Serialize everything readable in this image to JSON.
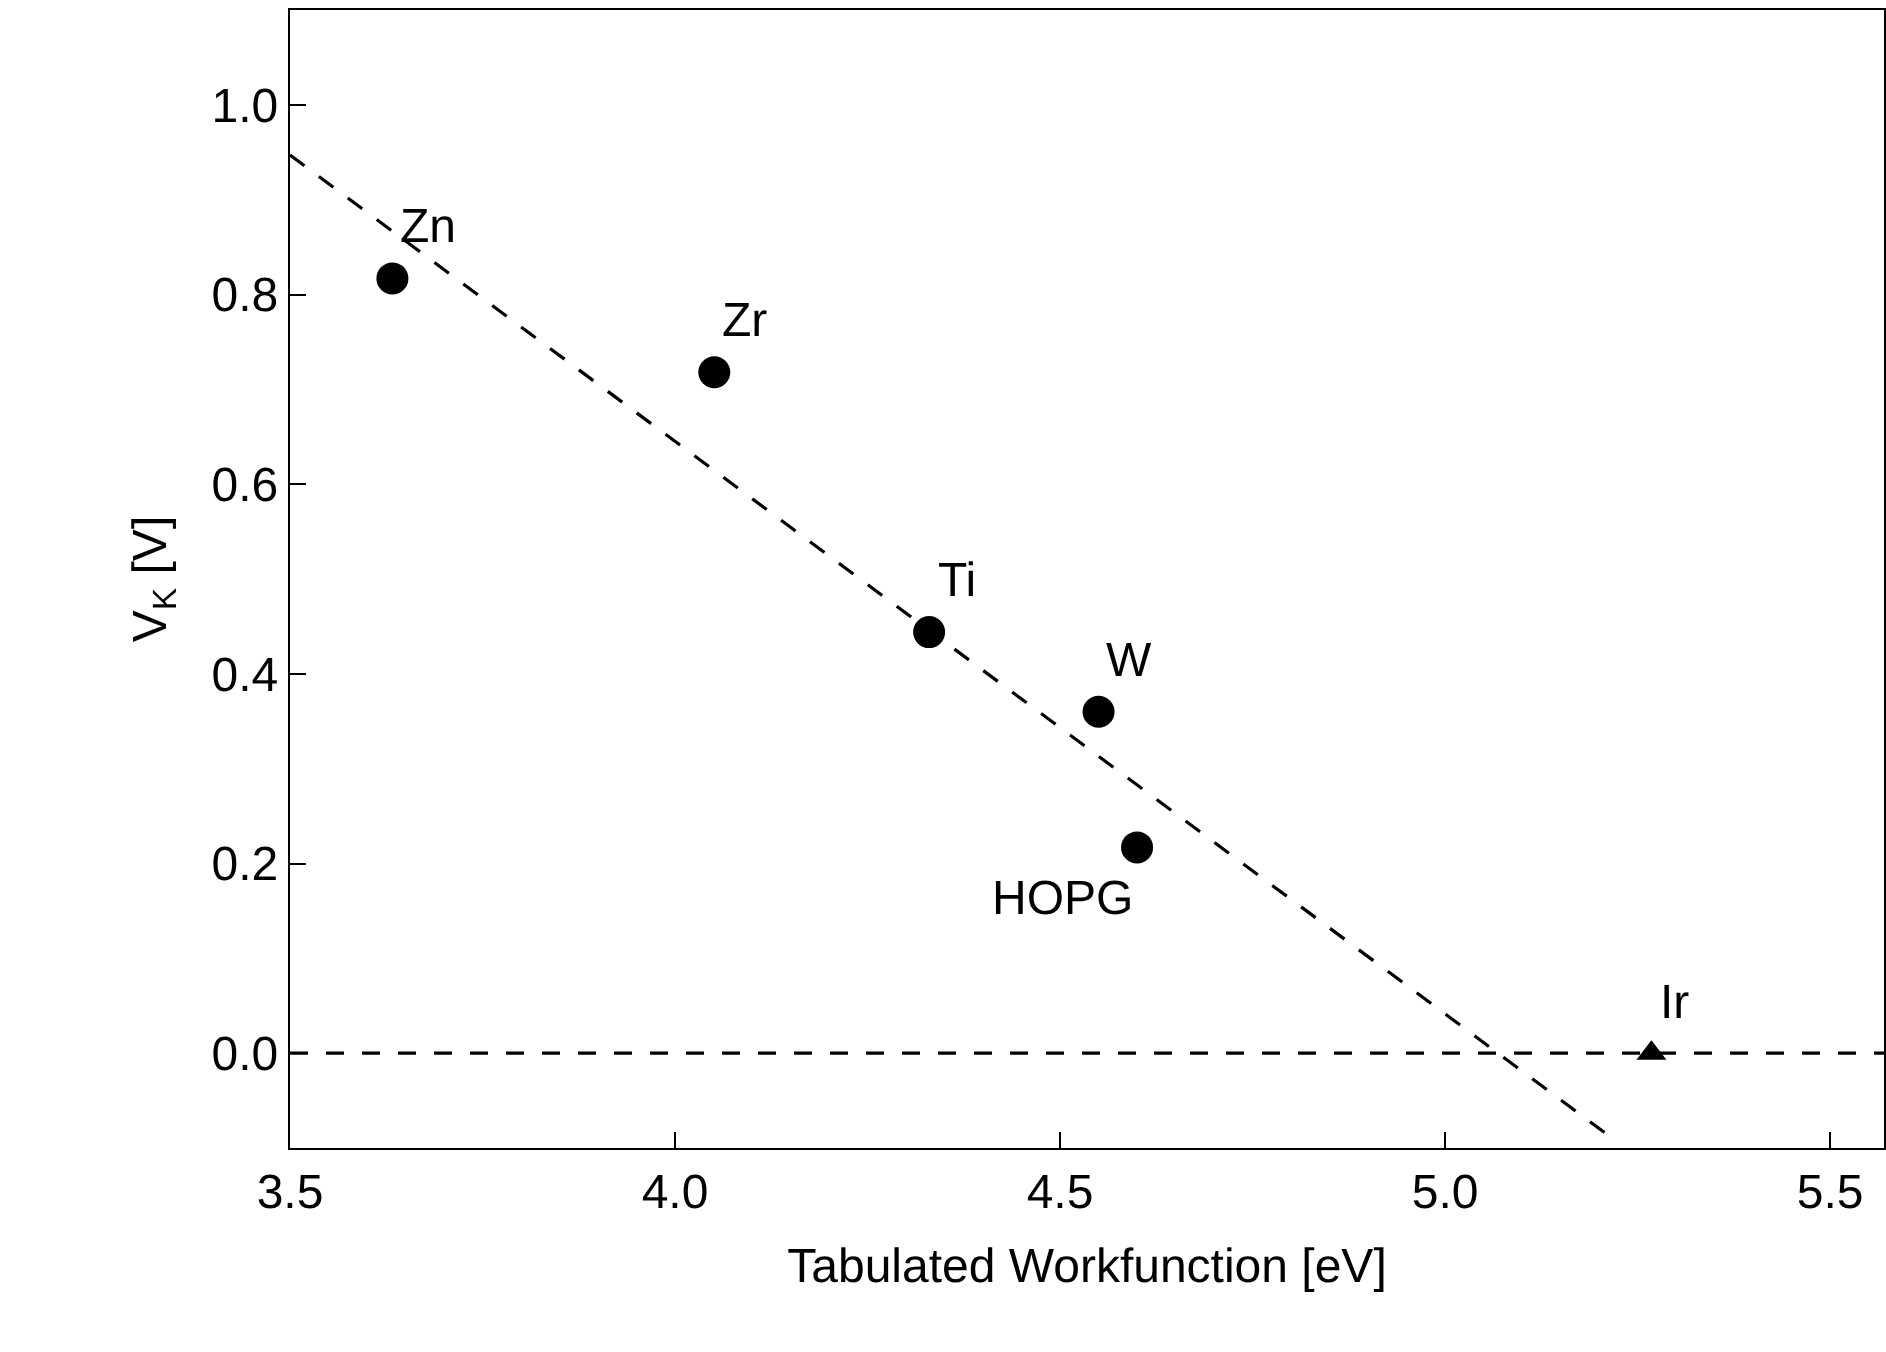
{
  "chart_data": {
    "type": "scatter",
    "xlabel": "Tabulated Workfunction [eV]",
    "ylabel": "V$_{K}$ [V]",
    "xlim": [
      3.5,
      5.57
    ],
    "xticks": [
      {
        "value": 3.5,
        "label": "3.5"
      },
      {
        "value": 4.0,
        "label": "4.0"
      },
      {
        "value": 4.5,
        "label": "4.5"
      },
      {
        "value": 5.0,
        "label": "5.0"
      },
      {
        "value": 5.5,
        "label": "5.5"
      }
    ],
    "ylim": [
      -0.1,
      1.1
    ],
    "yticks": [
      {
        "value": 0.0,
        "label": "0.0"
      },
      {
        "value": 0.2,
        "label": "0.2"
      },
      {
        "value": 0.4,
        "label": "0.4"
      },
      {
        "value": 0.6,
        "label": "0.6"
      },
      {
        "value": 0.8,
        "label": "0.8"
      },
      {
        "value": 1.0,
        "label": "1.0"
      }
    ],
    "grid": false,
    "series": [
      {
        "marker": "circle",
        "color": "#000000",
        "x": [
          3.633,
          4.051,
          4.33,
          4.55,
          4.6
        ],
        "values": [
          0.817,
          0.718,
          0.444,
          0.36,
          0.217
        ]
      },
      {
        "marker": "triangle",
        "color": "#000000",
        "x": [
          5.268
        ],
        "values": [
          0.0
        ]
      },
      {
        "type": "line",
        "line_style": "dashed",
        "color": "#000000",
        "x": [
          3.5,
          5.211
        ],
        "values": [
          0.947,
          -0.086
        ]
      }
    ],
    "ref_lines": [
      {
        "axis": "y",
        "value": 0,
        "color": "#000000",
        "line_style": "dashed"
      }
    ],
    "annotations": [
      {
        "text": "Zn",
        "x": 3.633,
        "y": 0.817
      },
      {
        "text": "Zr",
        "x": 4.051,
        "y": 0.718
      },
      {
        "text": "Ti",
        "x": 4.33,
        "y": 0.444
      },
      {
        "text": "W",
        "x": 4.55,
        "y": 0.36
      },
      {
        "text": "HOPG",
        "x": 4.6,
        "y": 0.217
      },
      {
        "text": "Ir",
        "x": 5.268,
        "y": 0.0
      }
    ]
  }
}
